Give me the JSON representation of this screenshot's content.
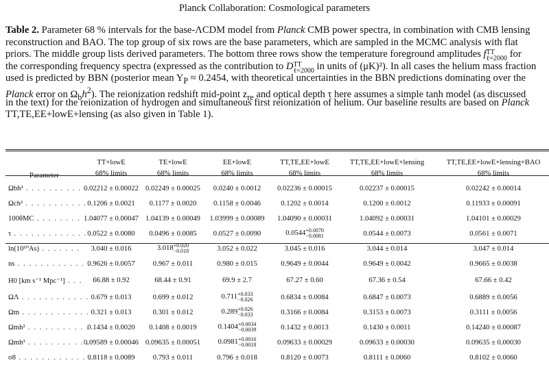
{
  "running_head": "Planck Collaboration: Cosmological parameters",
  "caption": {
    "table_number": "Table 2.",
    "lines": [
      [
        "Parameter 68 % intervals for the base-ΛCDM model from ",
        "Planck",
        " CMB power spectra, in combination with CMB lensing"
      ],
      [
        "reconstruction and BAO. The top group of six rows are the base parameters, which are sampled in the MCMC analysis with flat"
      ],
      [
        "priors. The middle group lists derived parameters. The bottom three rows show the temperature foreground amplitudes "
      ],
      [
        "the corresponding frequency spectra (expressed as the contribution to ",
        " in units of (μK)²). In all cases the helium mass fraction"
      ],
      [
        "used is predicted by BBN (posterior mean Y",
        "P",
        " ≈ 0.2454, with theoretical uncertainties in the BBN predictions dominating over the"
      ],
      [
        "Planck",
        " error on Ω",
        "b",
        "h",
        "2",
        "). The reionization redshift mid-point z",
        "re",
        " and optical depth τ here assumes a simple tanh model (as discussed"
      ],
      [
        "in the text) for the reionization of hydrogen and simultaneous first reionization of helium. Our baseline results are based on ",
        "Planck"
      ],
      [
        "TT,TE,EE+lowE+lensing (as also given in Table ",
        "1",
        ")."
      ]
    ],
    "f_amp": "f",
    "f_amp_sup": "TT",
    "f_amp_sub": "ℓ=2000",
    "for_text": " for",
    "d_sym": "D",
    "d_sup": "TT",
    "d_sub": "ℓ=2000"
  },
  "table": {
    "columns": [
      {
        "name": "Parameter",
        "limit": ""
      },
      {
        "name": "TT+lowE",
        "limit": "68% limits"
      },
      {
        "name": "TE+lowE",
        "limit": "68% limits"
      },
      {
        "name": "EE+lowE",
        "limit": "68% limits"
      },
      {
        "name": "TT,TE,EE+lowE",
        "limit": "68% limits"
      },
      {
        "name": "TT,TE,EE+lowE+lensing",
        "limit": "68% limits"
      },
      {
        "name": "TT,TE,EE+lowE+lensing+BAO",
        "limit": "68% limits"
      }
    ],
    "base_rows": [
      {
        "param": "Ωbh²",
        "dots": " . . . . . . . . . . .",
        "v": [
          "0.02212 ± 0.00022",
          "0.02249 ± 0.00025",
          "0.0240 ± 0.0012",
          "0.02236 ± 0.00015",
          "0.02237 ± 0.00015",
          "0.02242 ± 0.00014"
        ]
      },
      {
        "param": "Ωch²",
        "dots": " . . . . . . . . . . .",
        "v": [
          "0.1206 ± 0.0021",
          "0.1177 ± 0.0020",
          "0.1158 ± 0.0046",
          "0.1202 ± 0.0014",
          "0.1200 ± 0.0012",
          "0.11933 ± 0.00091"
        ]
      },
      {
        "param": "100θMC",
        "dots": " . . . . . . . .",
        "v": [
          "1.04077 ± 0.00047",
          "1.04139 ± 0.00049",
          "1.03999 ± 0.00089",
          "1.04090 ± 0.00031",
          "1.04092 ± 0.00031",
          "1.04101 ± 0.00029"
        ]
      },
      {
        "param": "τ",
        "dots": " . . . . . . . . . . . . .",
        "v": [
          "0.0522 ± 0.0080",
          "0.0496 ± 0.0085",
          "0.0527 ± 0.0090",
          "0.0544",
          "0.0544 ± 0.0073",
          "0.0561 ± 0.0071"
        ],
        "pm": {
          "3": [
            "+0.0070",
            "−0.0081"
          ]
        }
      },
      {
        "param": "ln(10¹⁰As)",
        "dots": " . . . . . . .",
        "v": [
          "3.040 ± 0.016",
          "3.018",
          "3.052 ± 0.022",
          "3.045 ± 0.016",
          "3.044 ± 0.014",
          "3.047 ± 0.014"
        ],
        "pm": {
          "1": [
            "+0.020",
            "−0.018"
          ]
        }
      },
      {
        "param": "ns",
        "dots": " . . . . . . . . . . . . .",
        "v": [
          "0.9626 ± 0.0057",
          "0.967 ± 0.011",
          "0.980 ± 0.015",
          "0.9649 ± 0.0044",
          "0.9649 ± 0.0042",
          "0.9665 ± 0.0038"
        ]
      }
    ],
    "derived_rows": [
      {
        "param": "H0 [km s⁻¹ Mpc⁻¹]",
        "dots": " . . .",
        "v": [
          "66.88 ± 0.92",
          "68.44 ± 0.91",
          "69.9 ± 2.7",
          "67.27 ± 0.60",
          "67.36 ± 0.54",
          "67.66 ± 0.42"
        ]
      },
      {
        "param": "ΩΛ",
        "dots": " . . . . . . . . . . . .",
        "v": [
          "0.679 ± 0.013",
          "0.699 ± 0.012",
          "0.711",
          "0.6834 ± 0.0084",
          "0.6847 ± 0.0073",
          "0.6889 ± 0.0056"
        ],
        "pm": {
          "2": [
            "+0.033",
            "−0.026"
          ]
        }
      },
      {
        "param": "Ωm",
        "dots": " . . . . . . . . . . . .",
        "v": [
          "0.321 ± 0.013",
          "0.301 ± 0.012",
          "0.289",
          "0.3166 ± 0.0084",
          "0.3153 ± 0.0073",
          "0.3111 ± 0.0056"
        ],
        "pm": {
          "2": [
            "+0.026",
            "−0.033"
          ]
        }
      },
      {
        "param": "Ωmh²",
        "dots": " . . . . . . . . . . .",
        "v": [
          "0.1434 ± 0.0020",
          "0.1408 ± 0.0019",
          "0.1404",
          "0.1432 ± 0.0013",
          "0.1430 ± 0.0011",
          "0.14240 ± 0.00087"
        ],
        "pm": {
          "2": [
            "+0.0034",
            "−0.0039"
          ]
        }
      },
      {
        "param": "Ωmh³",
        "dots": " . . . . . . . . . . .",
        "v": [
          "0.09589 ± 0.00046",
          "0.09635 ± 0.00051",
          "0.0981",
          "0.09633 ± 0.00029",
          "0.09633 ± 0.00030",
          "0.09635 ± 0.00030"
        ],
        "pm": {
          "2": [
            "+0.0016",
            "−0.0018"
          ]
        }
      },
      {
        "param": "σ8",
        "dots": " . . . . . . . . . . . . .",
        "v": [
          "0.8118 ± 0.0089",
          "0.793 ± 0.011",
          "0.796 ± 0.018",
          "0.8120 ± 0.0073",
          "0.8111 ± 0.0060",
          "0.8102 ± 0.0060"
        ]
      }
    ]
  }
}
